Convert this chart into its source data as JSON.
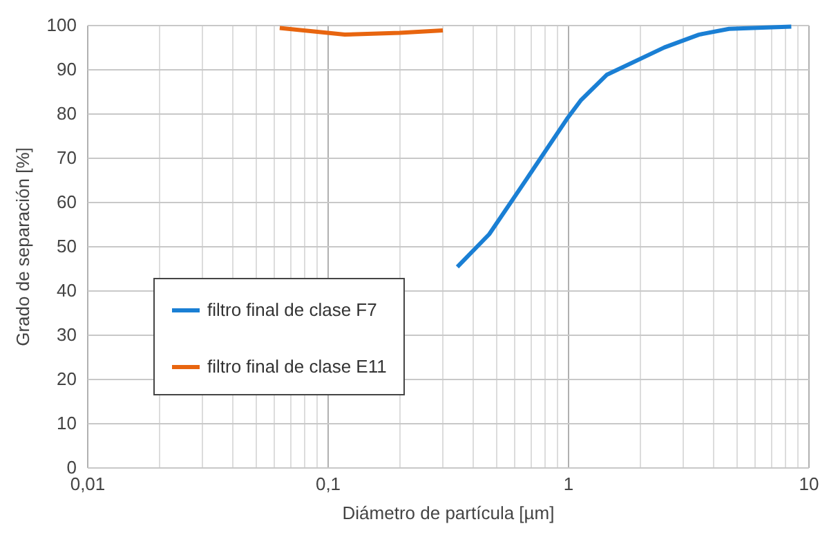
{
  "chart_data": {
    "type": "line",
    "xlabel": "Diámetro de partícula [µm]",
    "ylabel": "Grado de separación [%]",
    "log": "x",
    "xlim": [
      0.01,
      10
    ],
    "ylim": [
      0,
      100
    ],
    "xticks": [
      {
        "value": 0.01,
        "label": "0,01"
      },
      {
        "value": 0.1,
        "label": "0,1"
      },
      1,
      10
    ],
    "yticks": [
      0,
      10,
      20,
      30,
      40,
      50,
      60,
      70,
      80,
      90,
      100
    ],
    "grid": true,
    "legend": "left",
    "line_style": "solid",
    "series": [
      {
        "name": "filtro final de clase F7",
        "color": "#1a7fd4",
        "x": [
          0.347,
          0.471,
          0.665,
          0.99,
          1.13,
          1.45,
          2.52,
          3.51,
          4.68,
          8.5
        ],
        "values": [
          45.3,
          52.7,
          64.7,
          78.7,
          82.9,
          88.7,
          94.9,
          97.8,
          99.1,
          99.6
        ]
      },
      {
        "name": "filtro final de clase E11",
        "color": "#e8650f",
        "x": [
          0.0633,
          0.118,
          0.2,
          0.302
        ],
        "values": [
          99.3,
          97.8,
          98.2,
          98.75
        ]
      }
    ]
  }
}
